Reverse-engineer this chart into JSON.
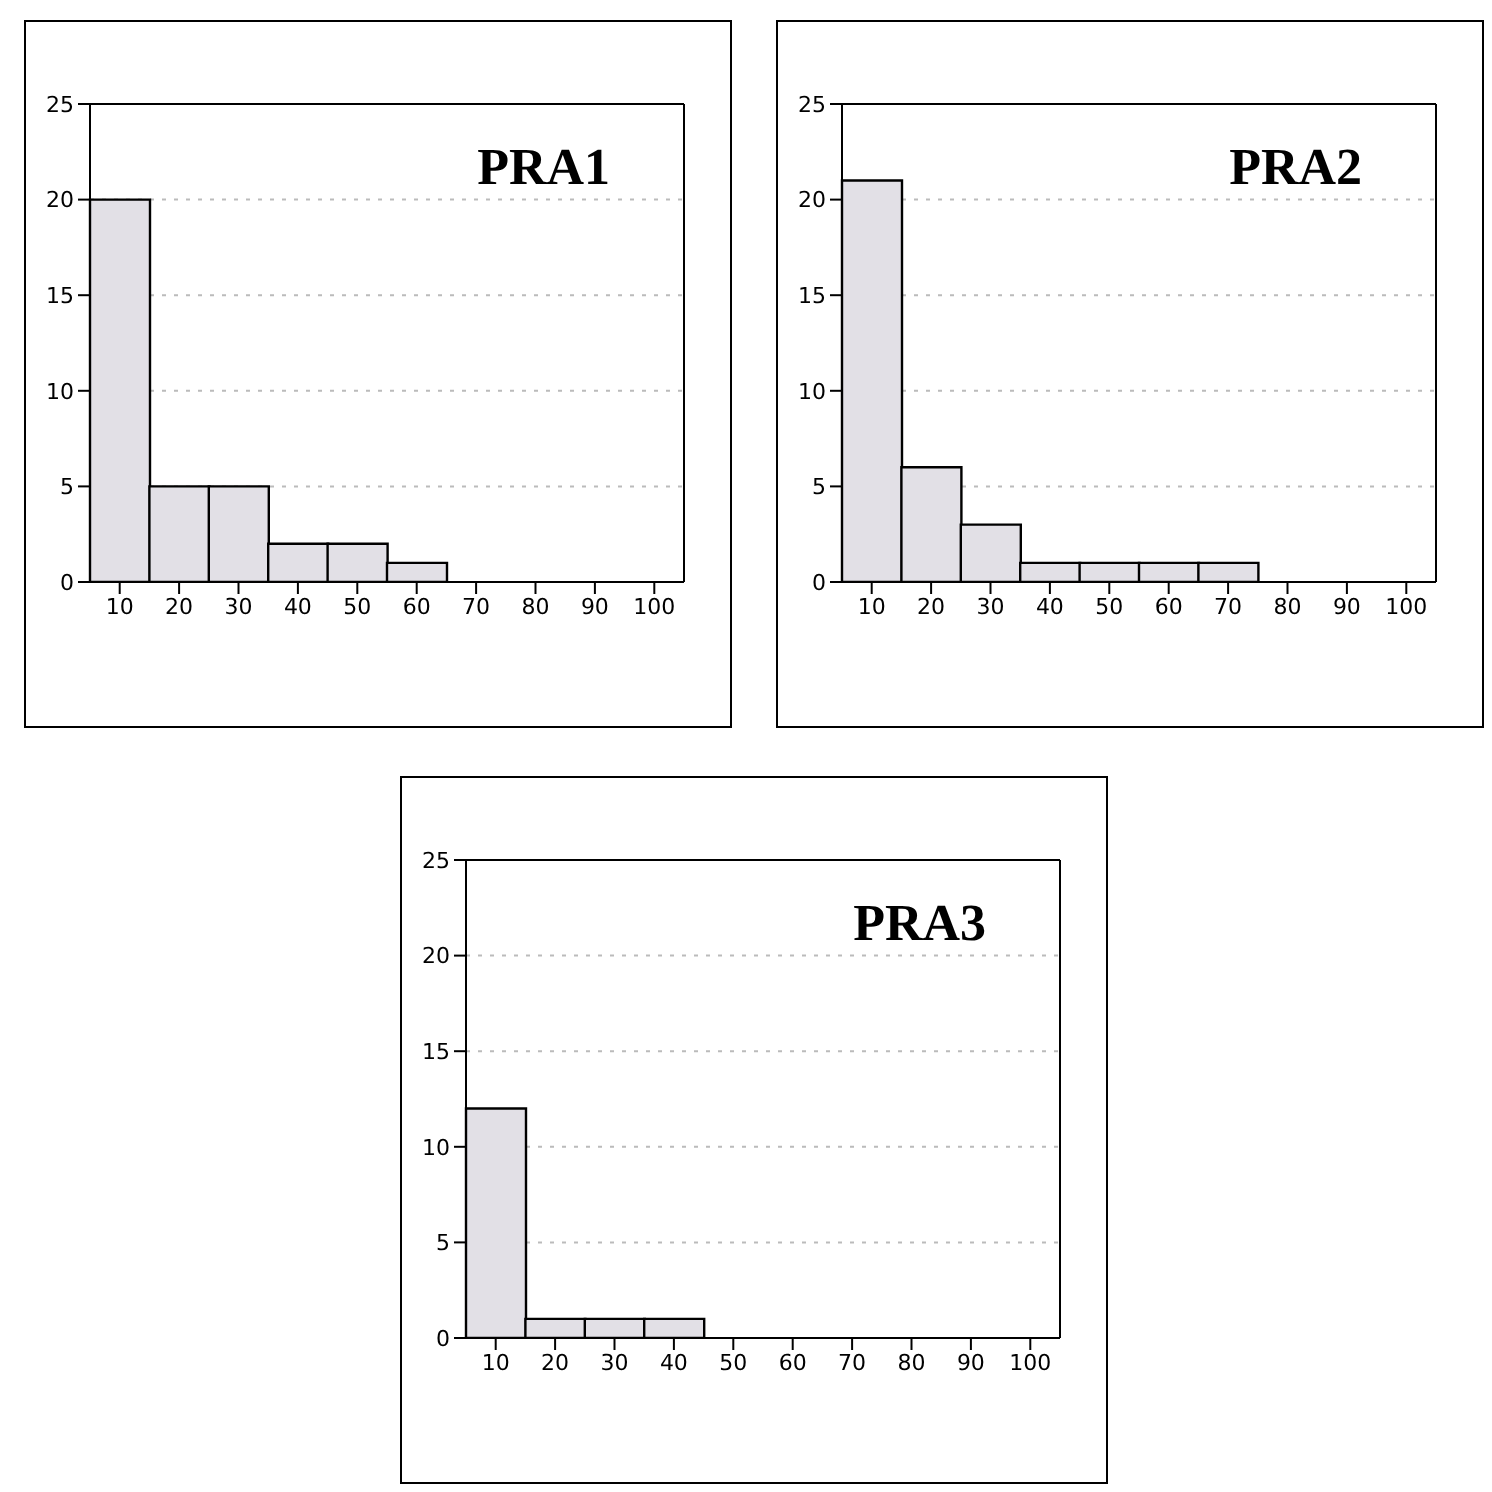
{
  "chart_data": [
    {
      "type": "bar",
      "title": "PRA1",
      "categories": [
        "10",
        "20",
        "30",
        "40",
        "50",
        "60",
        "70",
        "80",
        "90",
        "100"
      ],
      "values": [
        20,
        5,
        5,
        2,
        2,
        1,
        0,
        0,
        0,
        0
      ],
      "color": "#e2e0e6",
      "ylim": [
        0,
        25
      ],
      "yticks": [
        0,
        5,
        10,
        15,
        20,
        25
      ],
      "grid": "y",
      "legend": false
    },
    {
      "type": "bar",
      "title": "PRA2",
      "categories": [
        "10",
        "20",
        "30",
        "40",
        "50",
        "60",
        "70",
        "80",
        "90",
        "100"
      ],
      "values": [
        21,
        6,
        3,
        1,
        1,
        1,
        1,
        0,
        0,
        0
      ],
      "color": "#e2e0e6",
      "ylim": [
        0,
        25
      ],
      "yticks": [
        0,
        5,
        10,
        15,
        20,
        25
      ],
      "grid": "y",
      "legend": false
    },
    {
      "type": "bar",
      "title": "PRA3",
      "categories": [
        "10",
        "20",
        "30",
        "40",
        "50",
        "60",
        "70",
        "80",
        "90",
        "100"
      ],
      "values": [
        12,
        1,
        1,
        1,
        0,
        0,
        0,
        0,
        0,
        0
      ],
      "color": "#e2e0e6",
      "ylim": [
        0,
        25
      ],
      "yticks": [
        0,
        5,
        10,
        15,
        20,
        25
      ],
      "grid": "y",
      "legend": false
    }
  ]
}
